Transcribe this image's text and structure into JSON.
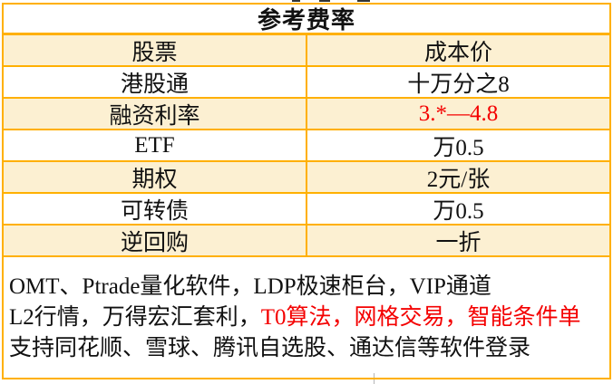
{
  "colors": {
    "border": "#ffb000",
    "row_fill": "#fcf0d2",
    "highlight_red": "#f40000",
    "text": "#111111"
  },
  "table": {
    "title": "参考费率",
    "header": {
      "label": "股票",
      "value": "成本价"
    },
    "rows": [
      {
        "label": "港股通",
        "value": "十万分之8",
        "color": "#111111"
      },
      {
        "label": "融资利率",
        "value": "3.*—4.8",
        "color": "#f40000"
      },
      {
        "label": "ETF",
        "value": "万0.5",
        "color": "#111111"
      },
      {
        "label": "期权",
        "value": "2元/张",
        "color": "#111111"
      },
      {
        "label": "可转债",
        "value": "万0.5",
        "color": "#111111"
      },
      {
        "label": "逆回购",
        "value": "一折",
        "color": "#111111"
      }
    ]
  },
  "notes": {
    "lines": [
      {
        "segments": [
          {
            "text": "OMT、Ptrade量化软件，LDP极速柜台，VIP通道",
            "color": "#111111"
          }
        ]
      },
      {
        "segments": [
          {
            "text": "L2行情，万得宏汇套利，",
            "color": "#111111"
          },
          {
            "text": "T0算法，网格交易，智能条件单",
            "color": "#f40000"
          }
        ]
      },
      {
        "segments": [
          {
            "text": "支持同花顺、雪球、腾讯自选股、通达信等软件登录",
            "color": "#111111"
          }
        ]
      }
    ]
  }
}
